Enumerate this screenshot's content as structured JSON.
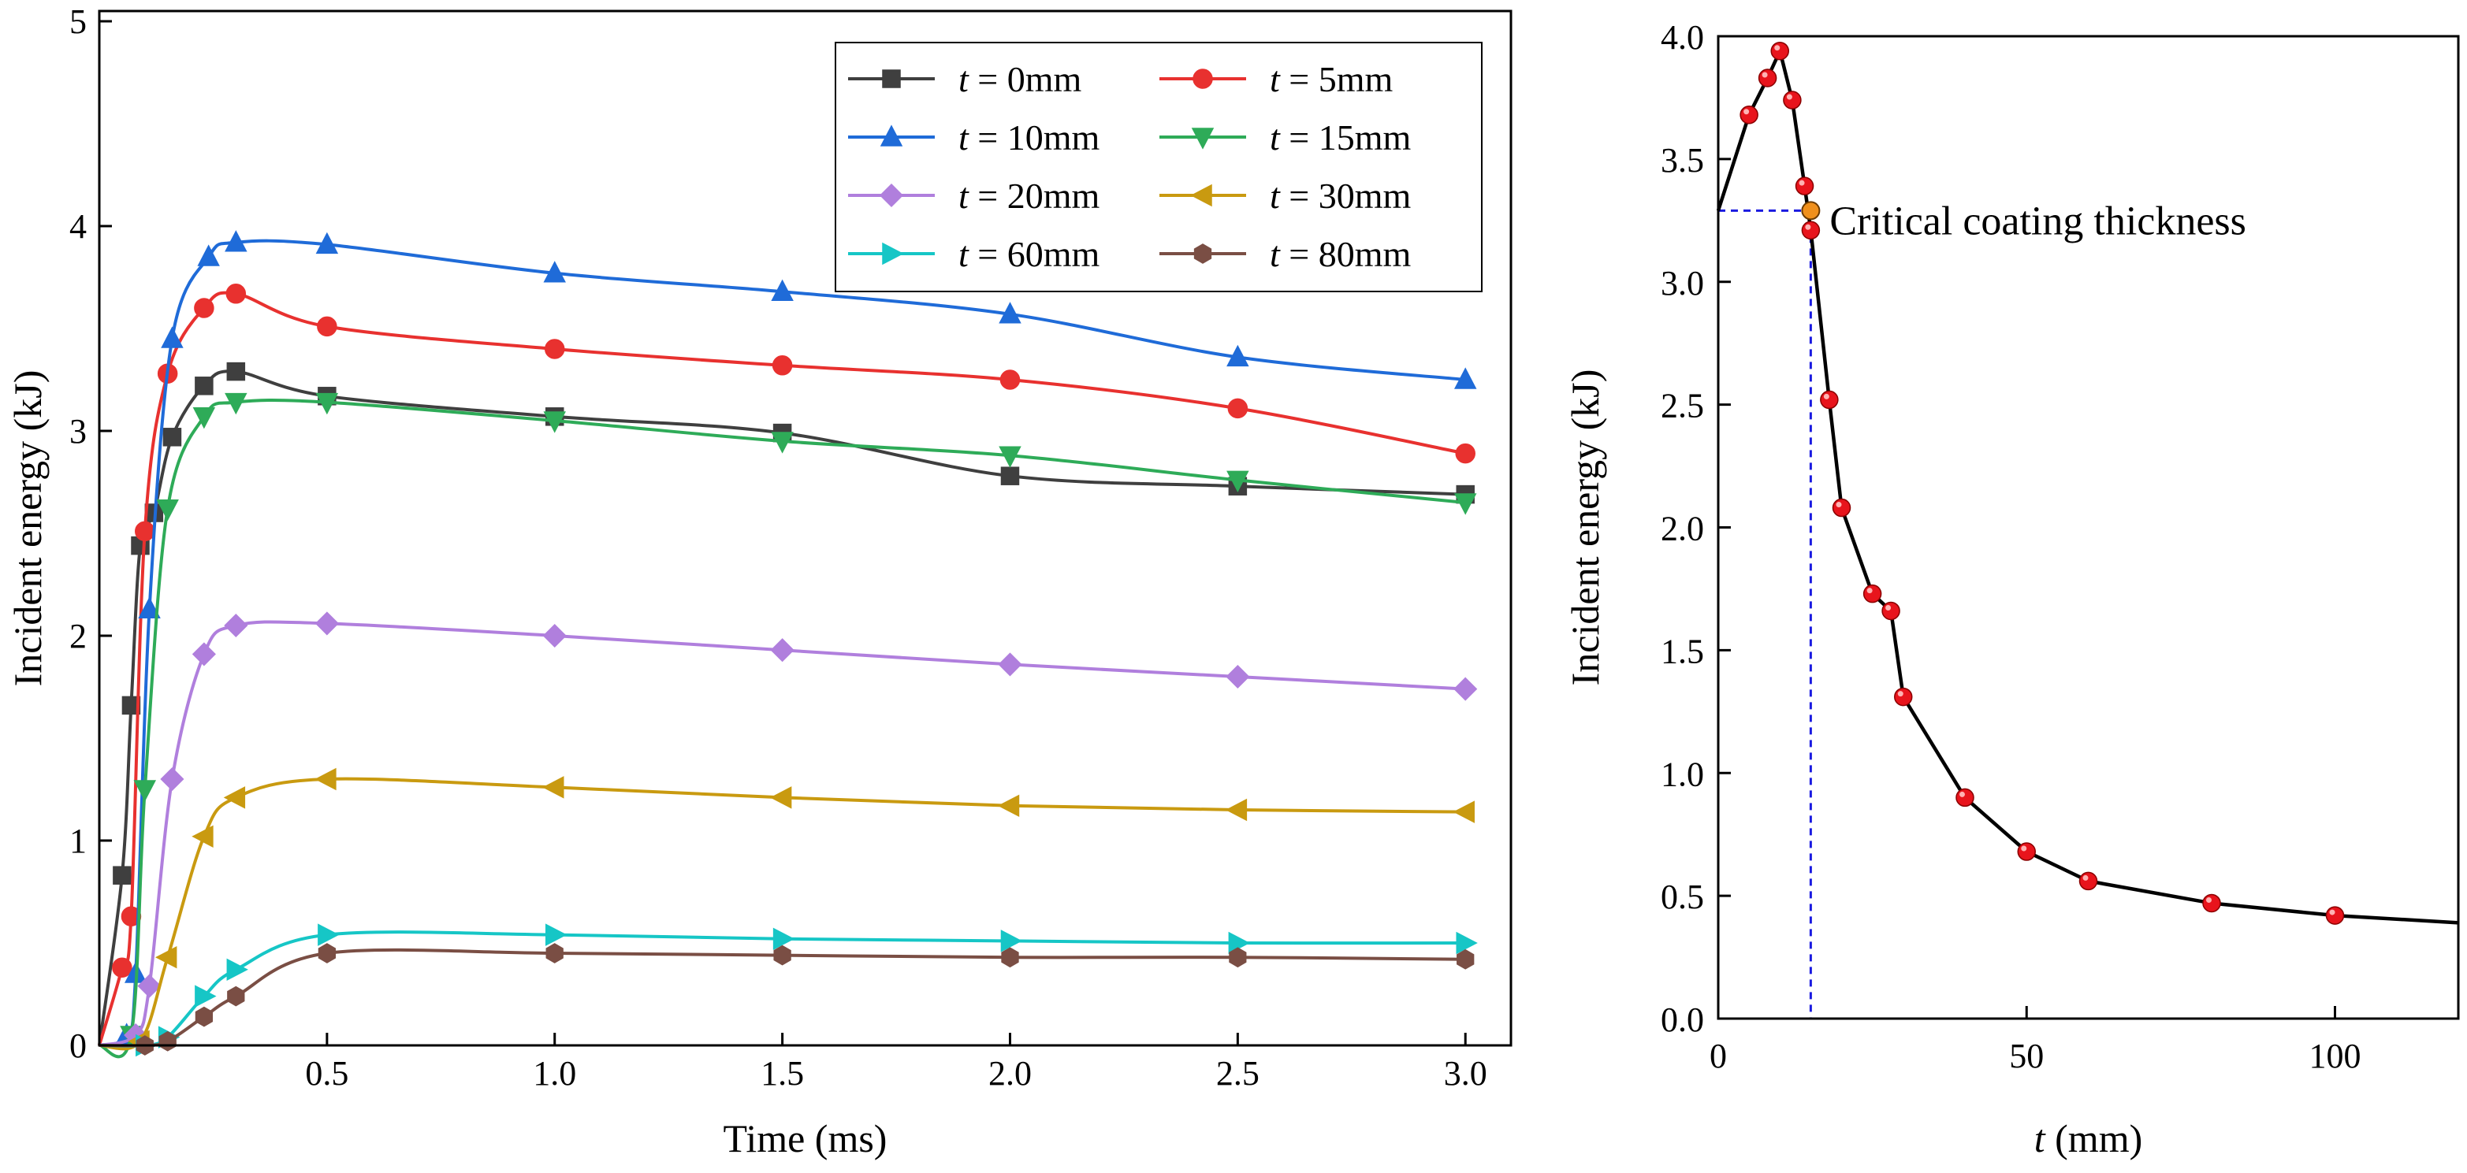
{
  "chart_data": [
    {
      "type": "line",
      "xlabel": "Time (ms)",
      "ylabel": "Incident energy (kJ)",
      "xlim": [
        0,
        3.1
      ],
      "ylim": [
        0,
        5.05
      ],
      "xticks": [
        "0.5",
        "1.0",
        "1.5",
        "2.0",
        "2.5",
        "3.0"
      ],
      "yticks": [
        "0",
        "1",
        "2",
        "3",
        "4",
        "5"
      ],
      "legend_prefix": "t",
      "legend_placement": "top-right",
      "series": [
        {
          "name": "t = 0mm",
          "legend_value": " = 0mm",
          "color": "#3f3f3f",
          "marker": "square",
          "x": [
            0,
            0.05,
            0.07,
            0.09,
            0.12,
            0.16,
            0.23,
            0.3,
            0.5,
            1.0,
            1.5,
            2.0,
            2.5,
            3.0
          ],
          "y": [
            0,
            0.83,
            1.66,
            2.44,
            2.6,
            2.97,
            3.22,
            3.29,
            3.17,
            3.07,
            2.99,
            2.78,
            2.73,
            2.69
          ]
        },
        {
          "name": "t = 5mm",
          "legend_value": " = 5mm",
          "color": "#e8312f",
          "marker": "circle",
          "x": [
            0,
            0.05,
            0.07,
            0.1,
            0.15,
            0.23,
            0.3,
            0.5,
            1.0,
            1.5,
            2.0,
            2.5,
            3.0
          ],
          "y": [
            0,
            0.38,
            0.63,
            2.51,
            3.28,
            3.6,
            3.67,
            3.51,
            3.4,
            3.32,
            3.25,
            3.11,
            2.89
          ]
        },
        {
          "name": "t = 10mm",
          "legend_value": " = 10mm",
          "color": "#1f6bd8",
          "marker": "triangle-up",
          "x": [
            0,
            0.06,
            0.08,
            0.11,
            0.16,
            0.24,
            0.3,
            0.5,
            1.0,
            1.5,
            2.0,
            2.5,
            3.0
          ],
          "y": [
            0,
            0.05,
            0.35,
            2.13,
            3.45,
            3.85,
            3.92,
            3.91,
            3.77,
            3.68,
            3.57,
            3.36,
            3.25
          ]
        },
        {
          "name": "t = 15mm",
          "legend_value": " = 15mm",
          "color": "#2eab58",
          "marker": "triangle-down",
          "x": [
            0,
            0.07,
            0.1,
            0.15,
            0.23,
            0.3,
            0.5,
            1.0,
            1.5,
            2.0,
            2.5,
            3.0
          ],
          "y": [
            0,
            0.05,
            1.25,
            2.62,
            3.07,
            3.14,
            3.14,
            3.05,
            2.95,
            2.88,
            2.76,
            2.65
          ]
        },
        {
          "name": "t = 20mm",
          "legend_value": " = 20mm",
          "color": "#b07fdd",
          "marker": "diamond",
          "x": [
            0,
            0.08,
            0.11,
            0.16,
            0.23,
            0.3,
            0.5,
            1.0,
            1.5,
            2.0,
            2.5,
            3.0
          ],
          "y": [
            0,
            0.05,
            0.29,
            1.3,
            1.91,
            2.05,
            2.06,
            2.0,
            1.93,
            1.86,
            1.8,
            1.74
          ]
        },
        {
          "name": "t = 30mm",
          "legend_value": " = 30mm",
          "color": "#c99a10",
          "marker": "triangle-left",
          "x": [
            0,
            0.09,
            0.15,
            0.23,
            0.3,
            0.5,
            1.0,
            1.5,
            2.0,
            2.5,
            3.0
          ],
          "y": [
            0,
            0.02,
            0.43,
            1.02,
            1.21,
            1.3,
            1.26,
            1.21,
            1.17,
            1.15,
            1.14
          ]
        },
        {
          "name": "t = 60mm",
          "legend_value": " = 60mm",
          "color": "#16c6c6",
          "marker": "triangle-right",
          "x": [
            0,
            0.1,
            0.15,
            0.23,
            0.3,
            0.5,
            1.0,
            1.5,
            2.0,
            2.5,
            3.0
          ],
          "y": [
            0,
            0.0,
            0.04,
            0.24,
            0.37,
            0.54,
            0.54,
            0.52,
            0.51,
            0.5,
            0.5
          ]
        },
        {
          "name": "t = 80mm",
          "legend_value": " = 80mm",
          "color": "#7a4e44",
          "marker": "hexagon",
          "x": [
            0,
            0.1,
            0.15,
            0.23,
            0.3,
            0.5,
            1.0,
            1.5,
            2.0,
            2.5,
            3.0
          ],
          "y": [
            0,
            0.0,
            0.02,
            0.14,
            0.24,
            0.45,
            0.45,
            0.44,
            0.43,
            0.43,
            0.42
          ]
        }
      ]
    },
    {
      "type": "line",
      "xlabel_italic": "t",
      "xlabel_rest": " (mm)",
      "ylabel": "Incident energy (kJ)",
      "xlim": [
        0,
        120
      ],
      "ylim": [
        0,
        4.0
      ],
      "xticks": [
        "0",
        "50",
        "100"
      ],
      "yticks": [
        "0.0",
        "0.5",
        "1.0",
        "1.5",
        "2.0",
        "2.5",
        "3.0",
        "3.5",
        "4.0"
      ],
      "series": [
        {
          "name": "Incident energy",
          "color": "#000000",
          "marker_color": "#e8141c",
          "x": [
            0,
            5,
            8,
            10,
            12,
            14,
            15,
            18,
            20,
            25,
            28,
            30,
            40,
            50,
            60,
            80,
            100,
            120
          ],
          "y": [
            3.29,
            3.68,
            3.83,
            3.94,
            3.74,
            3.39,
            3.21,
            2.52,
            2.08,
            1.73,
            1.66,
            1.31,
            0.9,
            0.68,
            0.56,
            0.47,
            0.42,
            0.39
          ],
          "markers_on": [
            1,
            2,
            3,
            4,
            5,
            6,
            7,
            8,
            9,
            10,
            11,
            12,
            13,
            14,
            15,
            16
          ]
        }
      ],
      "critical_point": {
        "x": 15,
        "y": 3.29,
        "color": "#f0901c",
        "guide_color": "#1a1ae0"
      },
      "annotation": "Critical coating thickness"
    }
  ]
}
